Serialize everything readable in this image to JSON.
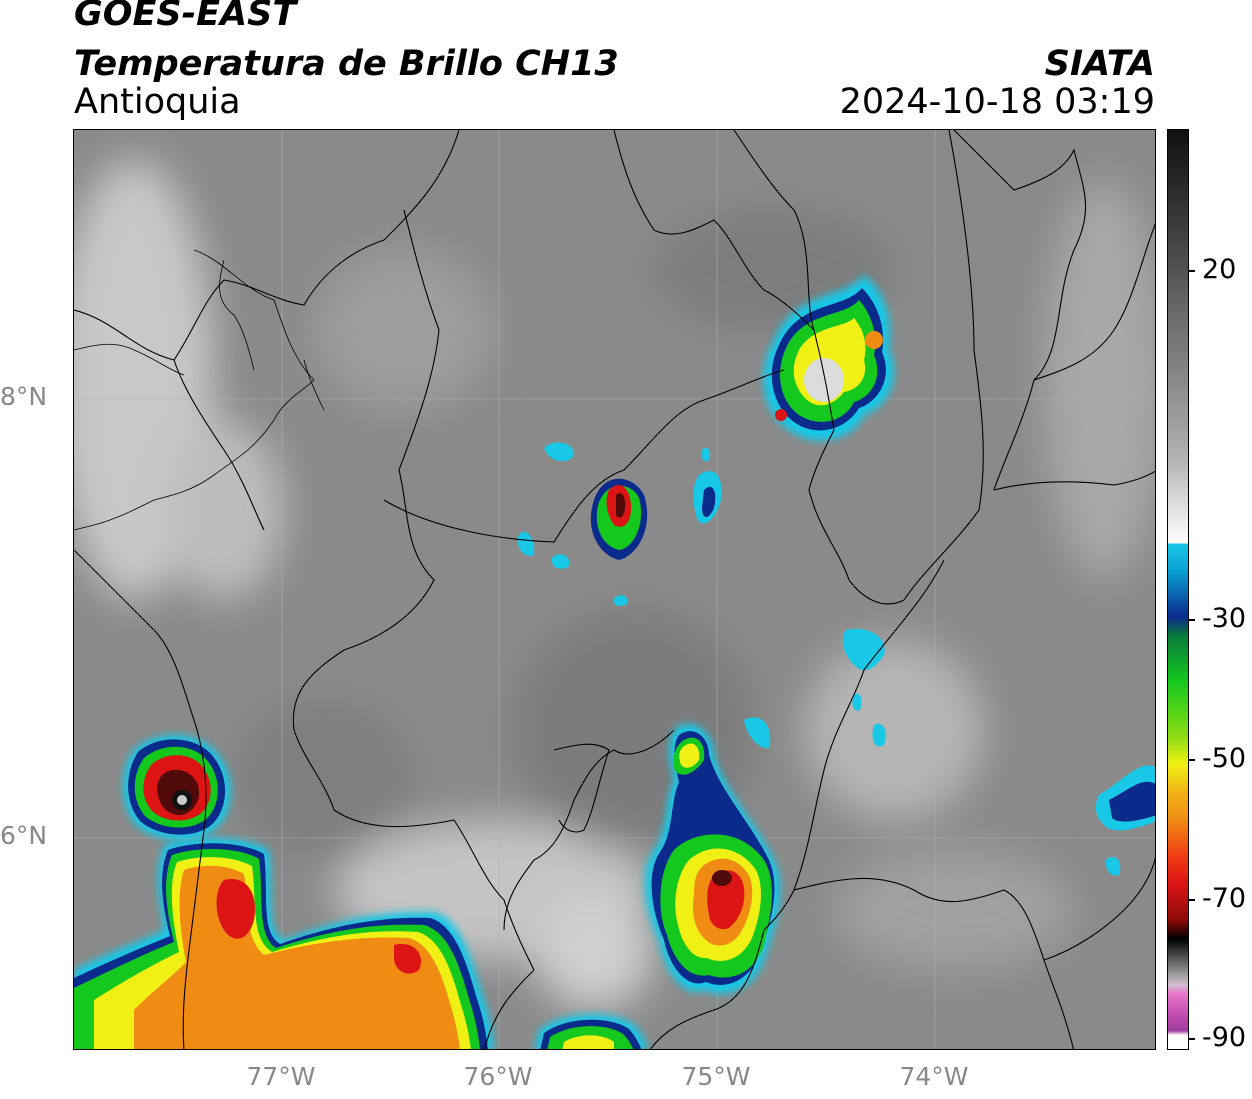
{
  "header": {
    "satellite": "GOES-EAST",
    "product": "Temperatura de Brillo CH13",
    "region": "Antioquia",
    "organization": "SIATA",
    "timestamp": "2024-10-18 03:19"
  },
  "map": {
    "lat_labels": [
      "8°N",
      "6°N"
    ],
    "lon_labels": [
      "77°W",
      "76°W",
      "75°W",
      "74°W"
    ]
  },
  "colorbar": {
    "labels": [
      "20",
      "-30",
      "-50",
      "-70",
      "-90"
    ],
    "colors": {
      "cyan": "#19c8e6",
      "blue": "#0a2a8c",
      "green": "#14c81e",
      "yellow": "#f0f014",
      "orange": "#f08c14",
      "red": "#dc1414",
      "darkred": "#500a0a",
      "black": "#000000",
      "magenta": "#b43cb4",
      "gray": "#808080"
    }
  }
}
